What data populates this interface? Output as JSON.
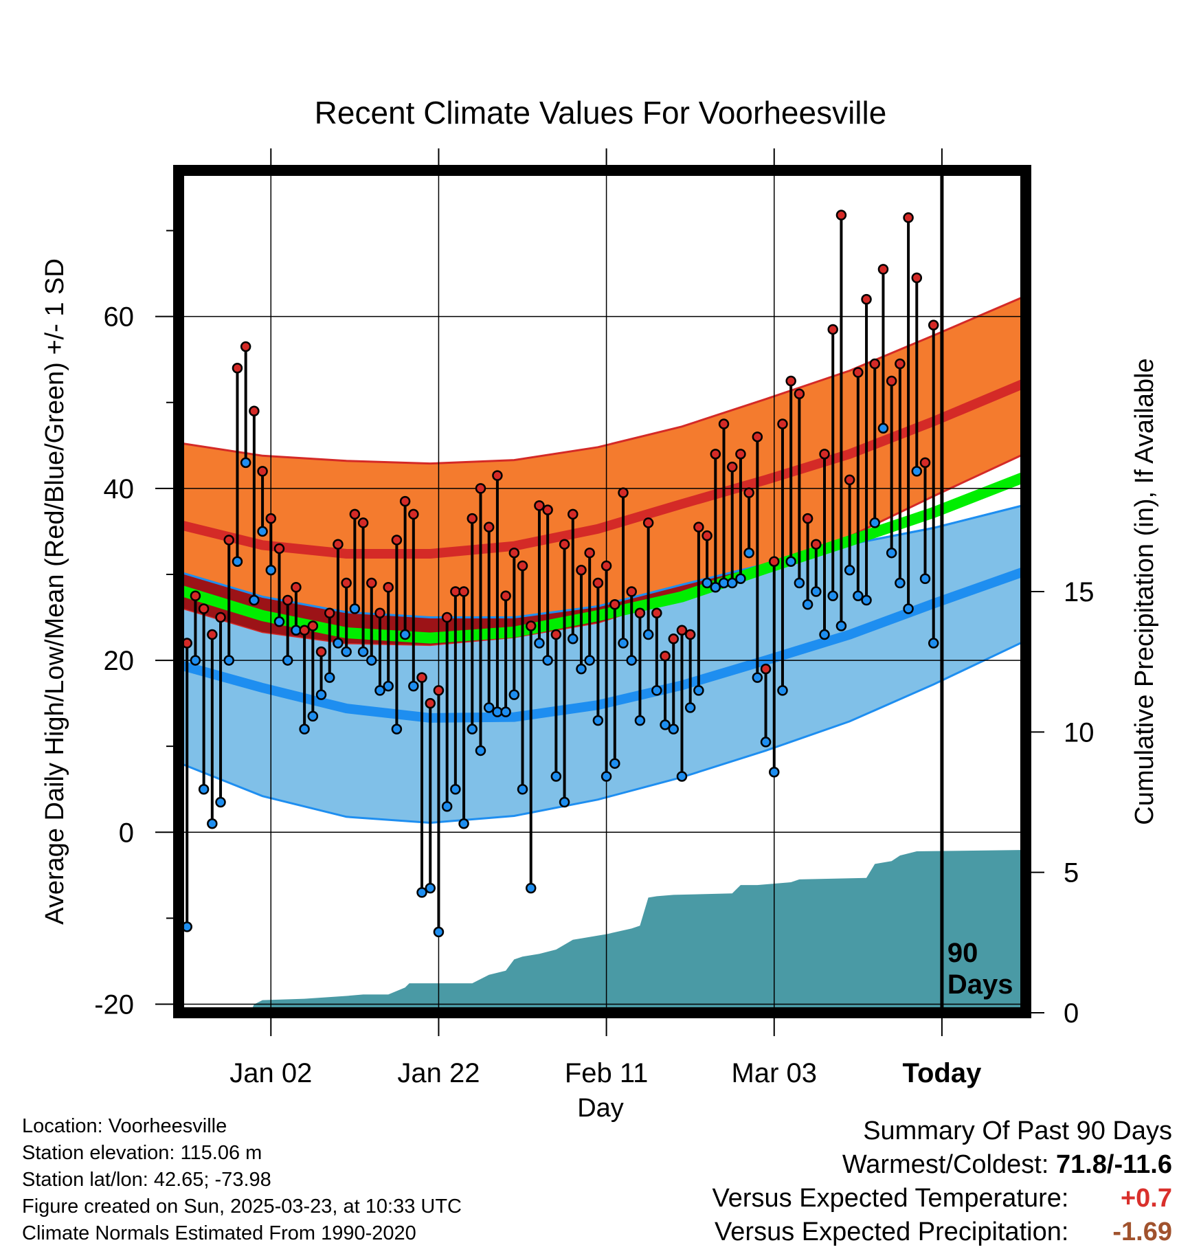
{
  "chart_data": {
    "type": "line",
    "title": "Recent Climate Values For Voorheesville",
    "xlabel": "Day",
    "ylabel": "Average Daily High/Low/Mean (Red/Blue/Green) +/- 1 SD",
    "y2label": "Cumulative Precipitation (in), If Available",
    "x_tick_labels": [
      "Jan 02",
      "Jan 22",
      "Feb 11",
      "Mar 03",
      "Today"
    ],
    "x_tick_days": [
      11,
      31,
      51,
      71,
      91
    ],
    "xlim_days": [
      0,
      101
    ],
    "x_day0": "Dec 22",
    "ylim": [
      -21,
      77
    ],
    "yticks": [
      -20,
      0,
      20,
      40,
      60
    ],
    "y2lim": [
      0,
      30
    ],
    "y2ticks": [
      0,
      5,
      10,
      15
    ],
    "grid": true,
    "today_day": 91,
    "days_label": [
      "90",
      "Days"
    ],
    "normals": {
      "day": [
        0,
        10,
        20,
        30,
        40,
        50,
        60,
        70,
        80,
        90,
        101
      ],
      "high_mean": [
        35.8,
        33.4,
        32.4,
        32.4,
        33.3,
        35.3,
        38.2,
        41.0,
        44.0,
        47.8,
        52.3
      ],
      "high_upper": [
        45.3,
        43.8,
        43.2,
        42.9,
        43.3,
        44.8,
        47.2,
        50.4,
        53.7,
        57.8,
        62.4
      ],
      "high_lower": [
        26.2,
        23.3,
        22.0,
        21.8,
        22.7,
        24.4,
        27.5,
        30.9,
        34.4,
        39.1,
        44.1
      ],
      "mean": [
        28.2,
        25.2,
        23.2,
        22.6,
        23.3,
        25.2,
        27.4,
        30.7,
        33.9,
        37.2,
        41.4
      ],
      "low_mean": [
        19.5,
        16.8,
        14.4,
        13.3,
        13.4,
        14.8,
        17.1,
        20.0,
        23.0,
        26.6,
        30.4
      ],
      "low_upper": [
        30.3,
        27.4,
        25.6,
        25.0,
        25.0,
        26.3,
        28.8,
        31.2,
        33.5,
        35.4,
        38.1
      ],
      "low_lower": [
        8.1,
        4.2,
        1.8,
        1.1,
        1.9,
        3.8,
        6.4,
        9.5,
        12.9,
        17.2,
        22.3
      ]
    },
    "daily": [
      [
        22.0,
        -11.0
      ],
      [
        27.5,
        20.0
      ],
      [
        26.0,
        5.0
      ],
      [
        23.0,
        1.0
      ],
      [
        25.0,
        3.5
      ],
      [
        34.0,
        20.0
      ],
      [
        54.0,
        31.5
      ],
      [
        56.5,
        43.0
      ],
      [
        49.0,
        27.0
      ],
      [
        42.0,
        35.0
      ],
      [
        36.5,
        30.5
      ],
      [
        33.0,
        24.5
      ],
      [
        27.0,
        20.0
      ],
      [
        28.5,
        23.5
      ],
      [
        23.5,
        12.0
      ],
      [
        24.0,
        13.5
      ],
      [
        21.0,
        16.0
      ],
      [
        25.5,
        18.0
      ],
      [
        33.5,
        22.0
      ],
      [
        29.0,
        21.0
      ],
      [
        37.0,
        26.0
      ],
      [
        36.0,
        21.0
      ],
      [
        29.0,
        20.0
      ],
      [
        25.5,
        16.5
      ],
      [
        28.5,
        17.0
      ],
      [
        34.0,
        12.0
      ],
      [
        38.5,
        23.0
      ],
      [
        37.0,
        17.0
      ],
      [
        18.0,
        -7.0
      ],
      [
        15.0,
        -6.5
      ],
      [
        16.5,
        -11.6
      ],
      [
        25.0,
        3.0
      ],
      [
        28.0,
        5.0
      ],
      [
        28.0,
        1.0
      ],
      [
        36.5,
        12.0
      ],
      [
        40.0,
        9.5
      ],
      [
        35.5,
        14.5
      ],
      [
        41.5,
        14.0
      ],
      [
        27.5,
        14.0
      ],
      [
        32.5,
        16.0
      ],
      [
        31.0,
        5.0
      ],
      [
        24.0,
        -6.5
      ],
      [
        38.0,
        22.0
      ],
      [
        37.5,
        20.0
      ],
      [
        23.0,
        6.5
      ],
      [
        33.5,
        3.5
      ],
      [
        37.0,
        22.5
      ],
      [
        30.5,
        19.0
      ],
      [
        32.5,
        20.0
      ],
      [
        29.0,
        13.0
      ],
      [
        31.0,
        6.5
      ],
      [
        26.5,
        8.0
      ],
      [
        39.5,
        22.0
      ],
      [
        28.0,
        20.0
      ],
      [
        25.5,
        13.0
      ],
      [
        36.0,
        23.0
      ],
      [
        25.5,
        16.5
      ],
      [
        20.5,
        12.5
      ],
      [
        22.5,
        12.0
      ],
      [
        23.5,
        6.5
      ],
      [
        23.0,
        14.5
      ],
      [
        35.5,
        16.5
      ],
      [
        34.5,
        29.0
      ],
      [
        44.0,
        28.5
      ],
      [
        47.5,
        29.0
      ],
      [
        42.5,
        29.0
      ],
      [
        44.0,
        29.5
      ],
      [
        39.5,
        32.5
      ],
      [
        46.0,
        18.0
      ],
      [
        19.0,
        10.5
      ],
      [
        31.5,
        7.0
      ],
      [
        47.5,
        16.5
      ],
      [
        52.5,
        31.5
      ],
      [
        51.0,
        29.0
      ],
      [
        36.5,
        26.5
      ],
      [
        33.5,
        28.0
      ],
      [
        44.0,
        23.0
      ],
      [
        58.5,
        27.5
      ],
      [
        71.8,
        24.0
      ],
      [
        41.0,
        30.5
      ],
      [
        53.5,
        27.5
      ],
      [
        62.0,
        27.0
      ],
      [
        54.5,
        36.0
      ],
      [
        65.5,
        47.0
      ],
      [
        52.5,
        32.5
      ],
      [
        54.5,
        29.0
      ],
      [
        71.5,
        26.0
      ],
      [
        64.5,
        42.0
      ],
      [
        43.0,
        29.5
      ],
      [
        59.0,
        22.0
      ]
    ],
    "precip": {
      "day": [
        0,
        8.5,
        9,
        10,
        15,
        20,
        22,
        25,
        27,
        27.5,
        35,
        37,
        39,
        40,
        41,
        42,
        43,
        45,
        47,
        48,
        50,
        51,
        54,
        55,
        56,
        57,
        59,
        66,
        67,
        69,
        73,
        74,
        82,
        83,
        85,
        86,
        88,
        101
      ],
      "value": [
        0,
        0,
        0.3,
        0.45,
        0.5,
        0.6,
        0.65,
        0.65,
        0.9,
        1.05,
        1.05,
        1.35,
        1.5,
        1.9,
        2.0,
        2.05,
        2.1,
        2.25,
        2.6,
        2.65,
        2.75,
        2.8,
        3.0,
        3.1,
        4.1,
        4.15,
        4.2,
        4.25,
        4.55,
        4.55,
        4.65,
        4.75,
        4.8,
        5.3,
        5.4,
        5.6,
        5.75,
        5.8
      ]
    }
  },
  "info": {
    "lines": [
      "Location: Voorheesville",
      "Station elevation: 115.06 m",
      "Station lat/lon: 42.65; -73.98",
      "Figure created on Sun, 2025-03-23, at 10:33 UTC",
      "Climate Normals Estimated From 1990-2020"
    ]
  },
  "summary": {
    "title": "Summary Of Past 90 Days",
    "warm_cold_label": "Warmest/Coldest:",
    "warm_cold_value": "71.8/-11.6",
    "temp_label": "Versus Expected Temperature:",
    "temp_value": "+0.7",
    "precip_label": "Versus Expected Precipitation:",
    "precip_value": "-1.69"
  },
  "colors": {
    "high_band": "#f47b2e",
    "high_line": "#d42a27",
    "low_band": "#80c0e8",
    "low_line": "#1e8ef0",
    "mean_line": "#00ee00",
    "overlap": "#9c1317",
    "precip": "#4a9aa5",
    "high_dot": "#d42a27",
    "low_dot": "#1e8ef0"
  }
}
